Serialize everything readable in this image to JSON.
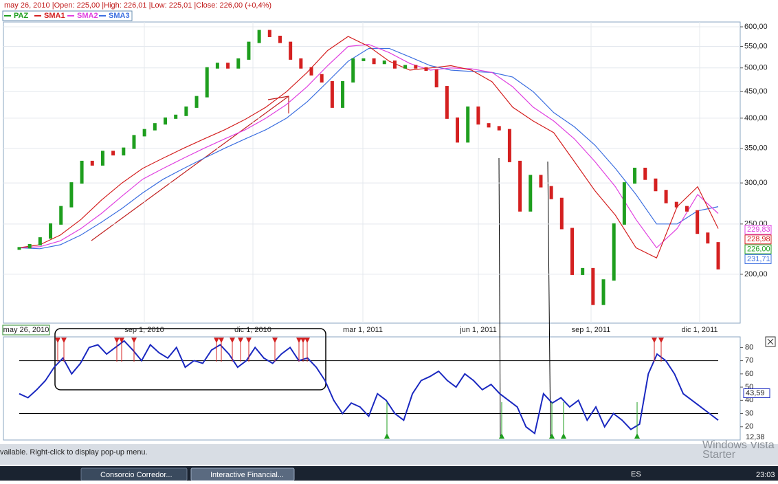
{
  "header": {
    "quote": "may 26, 2010 |Open: 225,00 |High: 226,01 |Low: 225,01 |Close: 226,00 (+0,4%)"
  },
  "price_chart": {
    "scale": "log",
    "ylim": [
      161,
      613
    ],
    "yticks": [
      {
        "value": 200,
        "label": "200,00"
      },
      {
        "value": 250,
        "label": "250,00"
      },
      {
        "value": 300,
        "label": "300,00"
      },
      {
        "value": 350,
        "label": "350,00"
      },
      {
        "value": 400,
        "label": "400,00"
      },
      {
        "value": 450,
        "label": "450,00"
      },
      {
        "value": 500,
        "label": "500,00"
      },
      {
        "value": 550,
        "label": "550,00"
      },
      {
        "value": 600,
        "label": "600,00"
      }
    ],
    "grid": true,
    "series": [
      {
        "name": "SMA3",
        "color": "#3c6fe0",
        "values": [
          225,
          224,
          228,
          238,
          252,
          268,
          287,
          305,
          320,
          335,
          350,
          365,
          380,
          400,
          430,
          470,
          515,
          545,
          545,
          525,
          505,
          495,
          492,
          490,
          480,
          450,
          410,
          385,
          355,
          320,
          285,
          250,
          250,
          265,
          270
        ]
      },
      {
        "name": "SMA2",
        "color": "#e040e0",
        "values": [
          225,
          226,
          232,
          245,
          262,
          283,
          305,
          320,
          335,
          350,
          365,
          380,
          400,
          425,
          460,
          505,
          550,
          555,
          535,
          510,
          495,
          500,
          498,
          490,
          460,
          420,
          395,
          365,
          330,
          295,
          255,
          225,
          245,
          285,
          262
        ]
      },
      {
        "name": "SMA1",
        "color": "#d42020",
        "values": [
          225,
          228,
          238,
          255,
          278,
          300,
          320,
          335,
          350,
          365,
          380,
          398,
          420,
          450,
          490,
          540,
          575,
          550,
          515,
          495,
          500,
          505,
          495,
          470,
          420,
          395,
          375,
          330,
          290,
          260,
          225,
          215,
          270,
          295,
          245
        ]
      },
      {
        "name": "PAZ",
        "color": "#1e9e1e",
        "values": [
          225,
          228,
          235,
          250,
          270,
          300,
          330,
          325,
          345,
          340,
          350,
          370,
          380,
          390,
          400,
          405,
          420,
          440,
          500,
          510,
          500,
          520,
          560,
          590,
          575,
          560,
          520,
          500,
          485,
          470,
          420,
          470,
          520,
          520,
          510,
          515,
          500,
          505,
          500,
          495,
          460,
          400,
          360,
          420,
          390,
          385,
          380,
          330,
          265,
          310,
          295,
          280,
          245,
          200,
          205,
          175,
          195,
          250,
          300,
          320,
          305,
          290,
          275,
          270,
          265,
          240,
          230,
          205
        ]
      }
    ],
    "date_labels": [
      "may 26, 2010",
      "sep 1, 2010",
      "dic 1, 2010",
      "mar 1, 2011",
      "jun 1, 2011",
      "sep 1, 2011",
      "dic 1, 2011"
    ],
    "price_tags": [
      {
        "label": "229,83",
        "color": "#e040e0"
      },
      {
        "label": "228,98",
        "color": "#d42020"
      },
      {
        "label": "226,00",
        "color": "#1e9e1e"
      },
      {
        "label": "231,71",
        "color": "#3c6fe0"
      }
    ]
  },
  "indicator": {
    "ylim": [
      10,
      88
    ],
    "yticks": [
      20,
      30,
      40,
      50,
      60,
      70,
      80
    ],
    "levels": [
      70,
      30
    ],
    "color": "#1a28c0",
    "values": [
      45,
      42,
      48,
      55,
      65,
      72,
      60,
      68,
      80,
      82,
      75,
      80,
      85,
      78,
      70,
      82,
      76,
      72,
      80,
      65,
      70,
      68,
      78,
      82,
      75,
      65,
      70,
      80,
      72,
      68,
      75,
      80,
      70,
      72,
      65,
      55,
      40,
      30,
      38,
      35,
      28,
      45,
      40,
      30,
      25,
      45,
      55,
      58,
      62,
      55,
      50,
      60,
      55,
      48,
      52,
      45,
      40,
      35,
      20,
      15,
      45,
      38,
      42,
      35,
      40,
      25,
      35,
      20,
      30,
      25,
      18,
      22,
      60,
      75,
      70,
      60,
      45,
      40,
      35,
      30,
      25
    ],
    "value_tags": [
      "43,59",
      "12,38"
    ]
  },
  "status_bar": "vailable. Right-click to display pop-up menu.",
  "watermark": [
    "Windows Vista",
    "Starter"
  ],
  "taskbar": {
    "tasks": [
      "Consorcio Corredor...",
      "Interactive Financial..."
    ],
    "language": "ES",
    "clock": "23:03"
  }
}
